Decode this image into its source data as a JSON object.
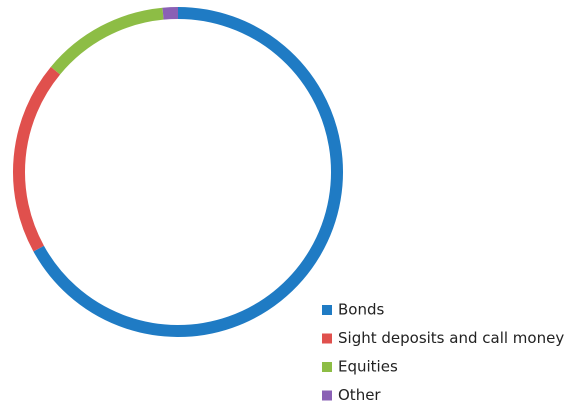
{
  "chart_data": {
    "type": "donut",
    "categories": [
      "Bonds",
      "Sight deposits and call money",
      "Equities",
      "Other"
    ],
    "values": [
      67,
      19,
      12.5,
      1.5
    ],
    "colors": [
      "#1f7bc4",
      "#e0504d",
      "#8dbd45",
      "#8a60b5"
    ]
  }
}
